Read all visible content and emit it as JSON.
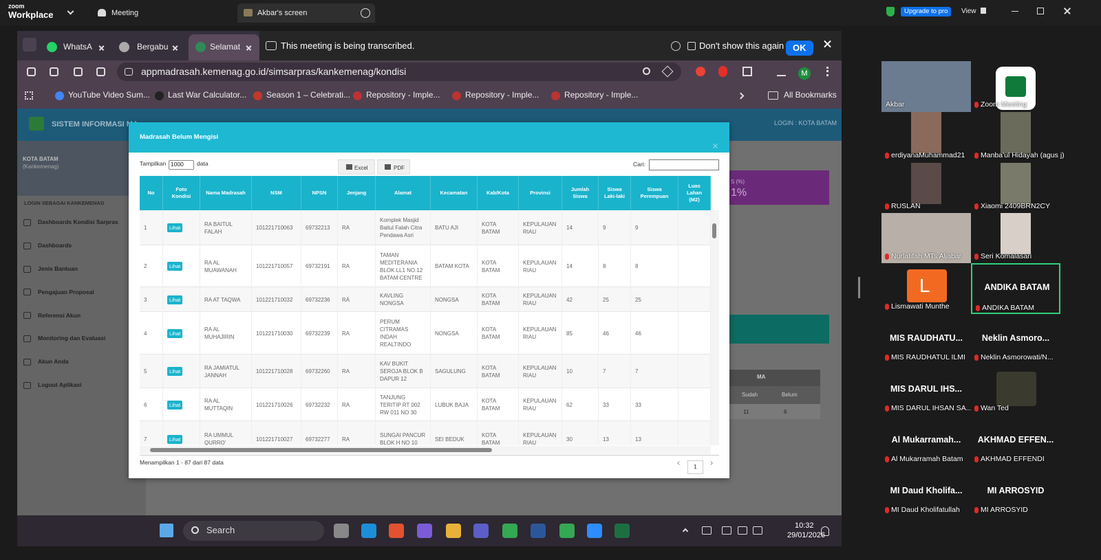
{
  "zoom": {
    "logo_top": "zoom",
    "logo_bottom": "Workplace",
    "meeting": "Meeting",
    "screen_tab": "Akbar's screen",
    "upgrade": "Upgrade to pro",
    "view": "View"
  },
  "browser": {
    "tabs": [
      "WhatsA",
      "Bergabu",
      "Selamat"
    ],
    "banner": "This meeting is being transcribed.",
    "dont_show": "Don't show this again",
    "ok": "OK",
    "url": "appmadrasah.kemenag.go.id/simsarpras/kankemenag/kondisi",
    "profile": "M",
    "bookmarks": [
      "YouTube Video Sum...",
      "Last War Calculator...",
      "Season 1 – Celebrati...",
      "Repository - Imple...",
      "Repository - Imple...",
      "Repository - Imple..."
    ],
    "all_bookmarks": "All Bookmarks"
  },
  "page": {
    "site_title": "SISTEM INFORMASI MA",
    "login": "LOGIN : KOTA BATAM",
    "city": "KOTA BATAM",
    "city_sub": "(Kankemenag)",
    "login_as": "LOGIN SEBAGAI KANKEMENAG",
    "menu": [
      "Dashboards Kondisi Sarpras",
      "Dashboards",
      "Jenis Bantuan",
      "Pengajuan Proposal",
      "Referensi Akun",
      "Monitoring dan Evaluasi",
      "Akun Anda",
      "Logout Aplikasi"
    ],
    "stat_label": "S (%)",
    "stat_value": "1%",
    "ma": "MA",
    "sudah": "Sudah",
    "belum": "Belum",
    "sudah_value": 11,
    "belum_value": 6
  },
  "modal": {
    "title": "Madrasah Belum Mengisi",
    "show": "Tampilkan",
    "show_count": "1000",
    "show_unit": "data",
    "excel": "Excel",
    "pdf": "PDF",
    "search": "Cari:",
    "table": {
      "headers": [
        "No",
        "Foto Kondisi",
        "Nama Madrasah",
        "NSM",
        "NPSN",
        "Jenjang",
        "Alamat",
        "Kecamatan",
        "Kab/Kota",
        "Provinsi",
        "Jumlah Siswa",
        "Siswa Laki-laki",
        "Siswa Perempuan",
        "Luas Lahan (M2)"
      ],
      "rows": [
        [
          1,
          "Lihat",
          "RA BAITUL FALAH",
          "101221710063",
          "69732213",
          "RA",
          "Komplek Masjid Baitul Falah Citra Pendawa Asri",
          "BATU AJI",
          "KOTA BATAM",
          "KEPULAUAN RIAU",
          14,
          9,
          9,
          null
        ],
        [
          2,
          "Lihat",
          "RA AL MUAWANAH",
          "101221710057",
          "69732191",
          "RA",
          "TAMAN MEDITERANIA BLOK LL1 NO.12 BATAM CENTRE",
          "BATAM KOTA",
          "KOTA BATAM",
          "KEPULAUAN RIAU",
          14,
          8,
          8,
          null
        ],
        [
          3,
          "Lihat",
          "RA AT TAQWA",
          "101221710032",
          "69732236",
          "RA",
          "KAVLING NONGSA",
          "NONGSA",
          "KOTA BATAM",
          "KEPULAUAN RIAU",
          42,
          25,
          25,
          null
        ],
        [
          4,
          "Lihat",
          "RA AL MUHAJIRIN",
          "101221710030",
          "69732239",
          "RA",
          "PERUM CITRAMAS INDAH REALTINDO",
          "NONGSA",
          "KOTA BATAM",
          "KEPULAUAN RIAU",
          85,
          46,
          46,
          null
        ],
        [
          5,
          "Lihat",
          "RA JAMIATUL JANNAH",
          "101221710028",
          "69732260",
          "RA",
          "KAV BUKIT SEROJA BLOK B DAPUR 12",
          "SAGULUNG",
          "KOTA BATAM",
          "KEPULAUAN RIAU",
          10,
          7,
          7,
          null
        ],
        [
          6,
          "Lihat",
          "RA AL MUTTAQIN",
          "101221710026",
          "69732232",
          "RA",
          "TANJUNG TERITIP RT 002 RW 011 NO 30",
          "LUBUK BAJA",
          "KOTA BATAM",
          "KEPULAUAN RIAU",
          62,
          33,
          33,
          null
        ],
        [
          7,
          "Lihat",
          "RA UMMUL QURRO'",
          "101221710027",
          "69732277",
          "RA",
          "SUNGAI PANCUR BLOK H NO 10",
          "SEI BEDUK",
          "KOTA BATAM",
          "KEPULAUAN RIAU",
          30,
          13,
          13,
          null
        ]
      ]
    },
    "footer": "Menampilkan 1 - 87 dari 87 data",
    "page": "1"
  },
  "participants": [
    {
      "name": "Akbar"
    },
    {
      "name": "Zoom Meeting"
    },
    {
      "name": "erdiyanaMuhammad21"
    },
    {
      "name": "Manba'ul Hidayah (agus j)"
    },
    {
      "name": "RUSLAN"
    },
    {
      "name": "Xiaomi 2409BRN2CY"
    },
    {
      "name": "Nurlatifah MTs Aljabar"
    },
    {
      "name": "Seri Komalasari"
    },
    {
      "name": "Lismawati Munthe",
      "avatar": "L"
    },
    {
      "name": "ANDIKA BATAM",
      "display": "ANDIKA BATAM"
    },
    {
      "name": "MIS RAUDHATUL ILMI",
      "display": "MIS RAUDHATU..."
    },
    {
      "name": "Neklin Asmorowati/N...",
      "display": "Neklin Asmoro..."
    },
    {
      "name": "MIS DARUL IHSAN SA...",
      "display": "MIS DARUL IHS..."
    },
    {
      "name": "Wan Ted"
    },
    {
      "name": "Al Mukarramah Batam",
      "display": "Al Mukarramah..."
    },
    {
      "name": "AKHMAD EFFENDI",
      "display": "AKHMAD EFFEN..."
    },
    {
      "name": "MI Daud Kholifatullah",
      "display": "MI Daud Kholifa..."
    },
    {
      "name": "MI ARROSYID",
      "display": "MI ARROSYID"
    }
  ],
  "taskbar": {
    "search": "Search",
    "time": "10:32",
    "date": "29/01/2026"
  }
}
